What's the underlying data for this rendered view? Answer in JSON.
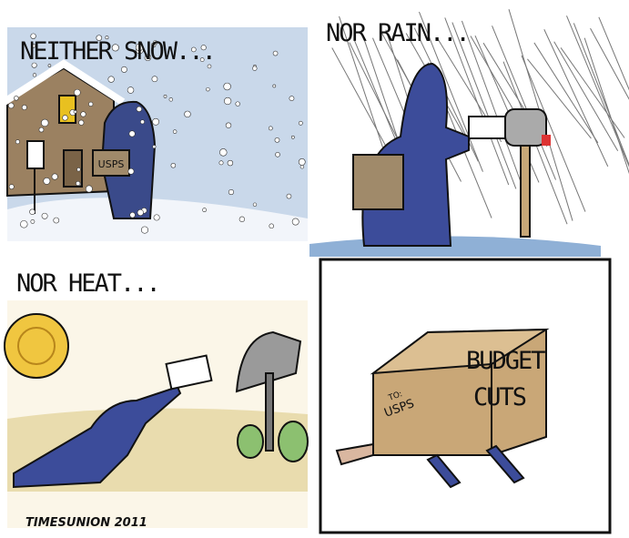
{
  "panels": [
    {
      "caption": "NEITHER SNOW...",
      "bag_label": "USPS"
    },
    {
      "caption": "NOR RAIN..."
    },
    {
      "caption": "NOR HEAT..."
    },
    {
      "box_label": [
        "BUDGET",
        "CUTS"
      ],
      "box_address": [
        "TO:",
        "USPS"
      ]
    }
  ],
  "signature": "TIMESUNION 2011"
}
